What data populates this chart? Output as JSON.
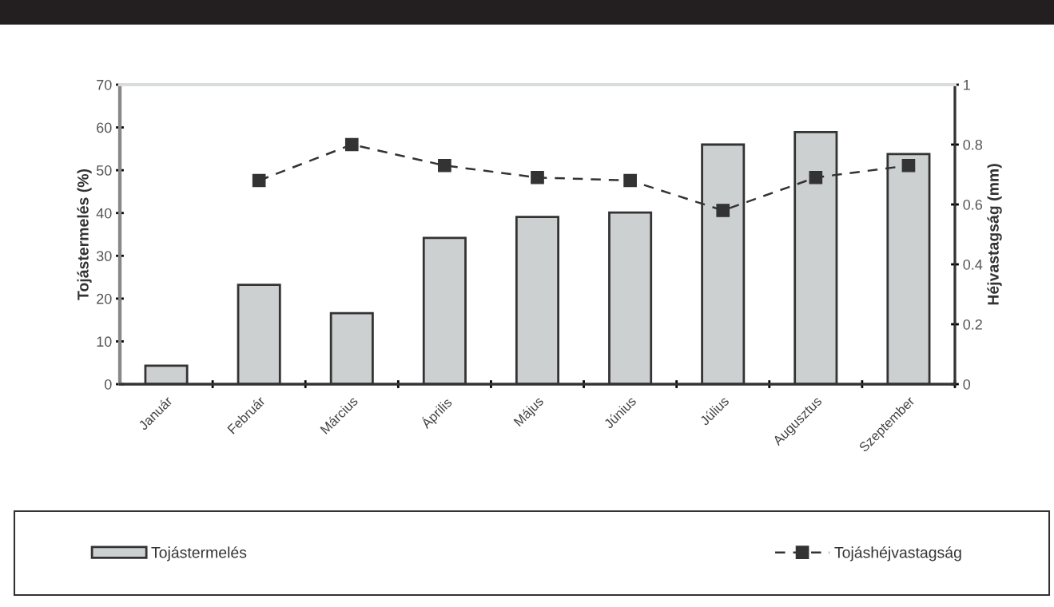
{
  "chart_data": {
    "type": "bar",
    "categories": [
      "Január",
      "Február",
      "Március",
      "Április",
      "Május",
      "Június",
      "Július",
      "Augusztus",
      "Szeptember"
    ],
    "ylabel": "Tojástermelés (%)",
    "y2label": "Héjvastagság (mm)",
    "series": [
      {
        "name": "Tojástermelés",
        "color": "#cdd0d1",
        "values": [
          4.3,
          23.2,
          16.6,
          34.2,
          39.1,
          40.1,
          56,
          58.9,
          53.8
        ]
      },
      {
        "name": "Tojáshéjvastagság",
        "type": "line",
        "axis": "y2",
        "color": "#333333",
        "marker": "square",
        "line_style": "dashed",
        "values": [
          null,
          0.68,
          0.8,
          0.73,
          0.69,
          0.68,
          0.58,
          0.69,
          0.73
        ]
      }
    ],
    "ylim": [
      0,
      70
    ],
    "yticks": [
      0,
      10,
      20,
      30,
      40,
      50,
      60,
      70
    ],
    "y2lim": [
      0,
      1
    ],
    "y2ticks": [
      0,
      0.2,
      0.4,
      0.6,
      0.8,
      1
    ],
    "grid": false,
    "legend": "bottom"
  }
}
